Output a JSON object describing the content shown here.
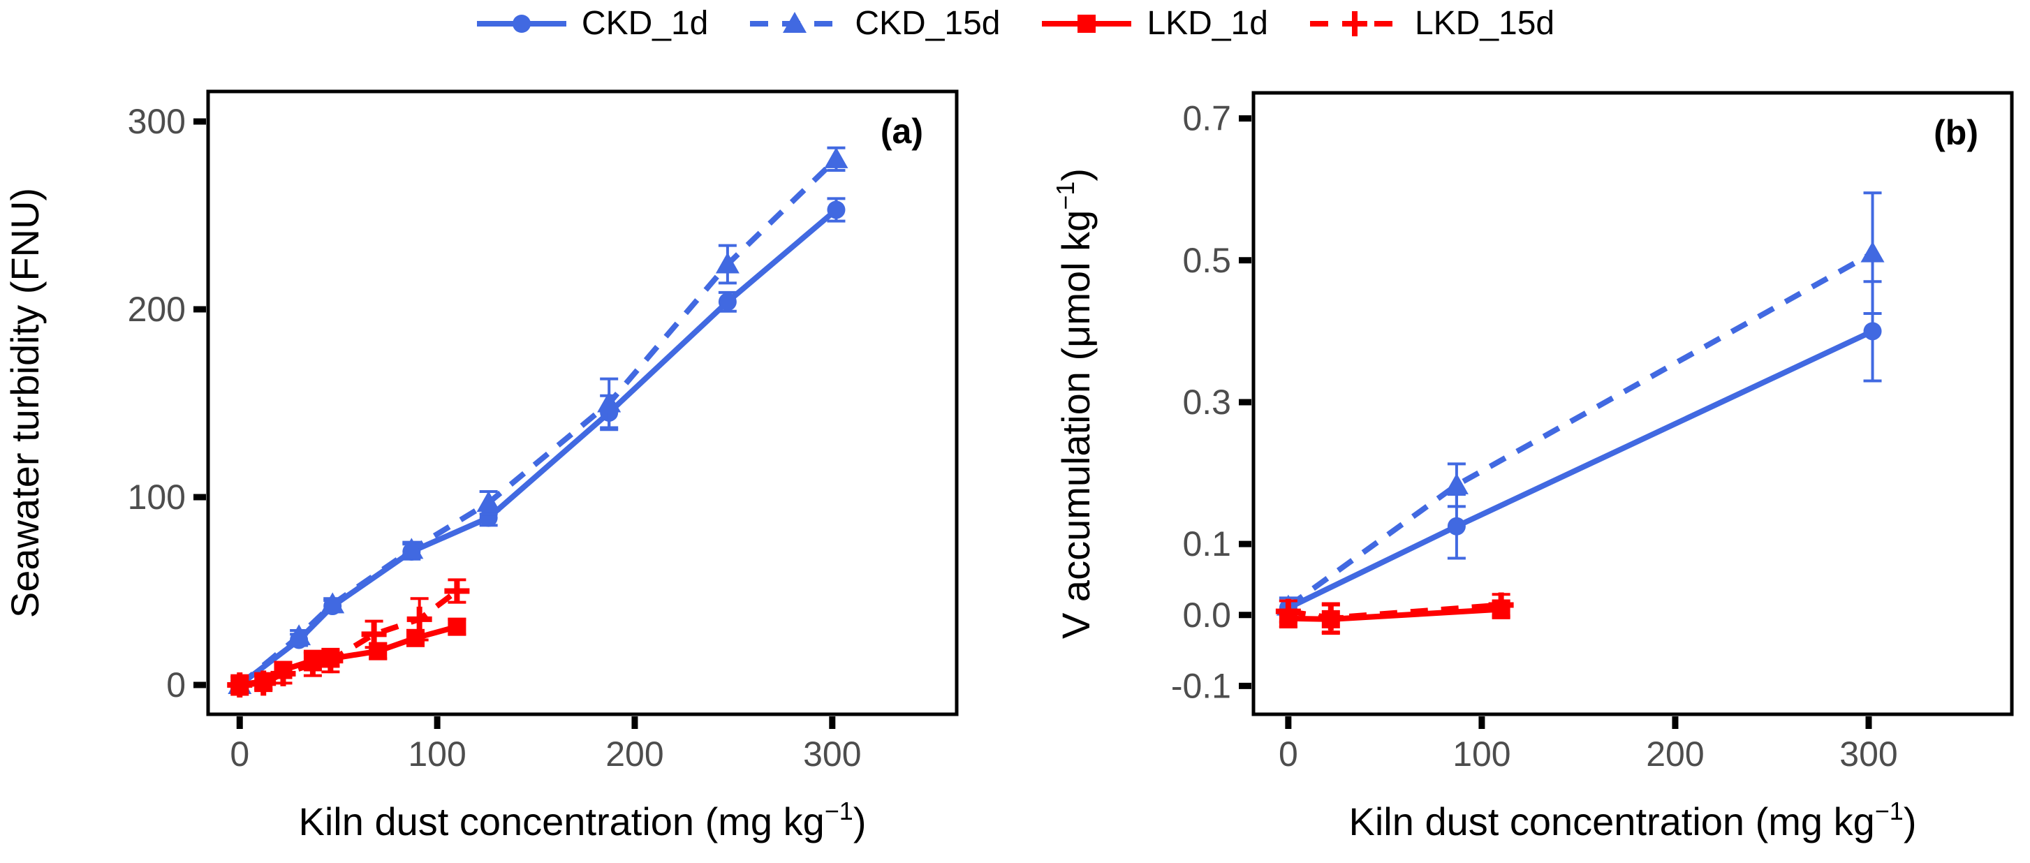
{
  "figure": {
    "background": "#ffffff"
  },
  "style": {
    "axis_color": "#000000",
    "tick_label_color": "#4d4d4d",
    "blue": "#4169E1",
    "red": "#ff0000"
  },
  "legend": {
    "position": "top-center",
    "items": [
      {
        "label": "CKD_1d",
        "color": "#4169E1",
        "dash": false,
        "marker": "circle"
      },
      {
        "label": "CKD_15d",
        "color": "#4169E1",
        "dash": true,
        "marker": "triangle"
      },
      {
        "label": "LKD_1d",
        "color": "#ff0000",
        "dash": false,
        "marker": "square"
      },
      {
        "label": "LKD_15d",
        "color": "#ff0000",
        "dash": true,
        "marker": "plus"
      }
    ]
  },
  "chart_data": [
    {
      "id": "a",
      "type": "line",
      "panel_label": "(a)",
      "xlabel": {
        "base": "Kiln dust concentration (mg kg",
        "sup": "−1",
        "end": ")"
      },
      "ylabel": {
        "base": "Seawater turbidity (FNU)",
        "sup": "",
        "end": ""
      },
      "xlim": [
        -16,
        363
      ],
      "ylim": [
        -15.6,
        316
      ],
      "grid": false,
      "xticks": [
        {
          "v": 0,
          "label": "0"
        },
        {
          "v": 100,
          "label": "100"
        },
        {
          "v": 200,
          "label": "200"
        },
        {
          "v": 300,
          "label": "300"
        }
      ],
      "yticks": [
        {
          "v": 0,
          "label": "0"
        },
        {
          "v": 100,
          "label": "100"
        },
        {
          "v": 200,
          "label": "200"
        },
        {
          "v": 300,
          "label": "300"
        }
      ],
      "series": [
        {
          "name": "CKD_1d",
          "color": "#4169E1",
          "dash": false,
          "marker": "circle",
          "x": [
            0,
            30,
            47,
            87,
            126,
            187,
            247,
            302
          ],
          "y": [
            0,
            24,
            42,
            71,
            89,
            145,
            204,
            253
          ],
          "err": [
            2,
            3,
            3,
            4,
            4,
            9,
            5,
            6
          ]
        },
        {
          "name": "CKD_15d",
          "color": "#4169E1",
          "dash": true,
          "marker": "triangle",
          "x": [
            0,
            30,
            47,
            87,
            126,
            187,
            247,
            302
          ],
          "y": [
            0,
            26,
            43,
            72,
            97,
            150,
            224,
            280
          ],
          "err": [
            2,
            3,
            3,
            4,
            6,
            13,
            10,
            6
          ]
        },
        {
          "name": "LKD_1d",
          "color": "#ff0000",
          "dash": false,
          "marker": "square",
          "x": [
            0,
            12,
            22,
            37,
            46,
            70,
            89,
            110
          ],
          "y": [
            0,
            2,
            8,
            13,
            14,
            18,
            25,
            31
          ],
          "err": [
            4,
            4,
            4,
            5,
            4,
            4,
            4,
            4
          ]
        },
        {
          "name": "LKD_15d",
          "color": "#ff0000",
          "dash": true,
          "marker": "plus",
          "x": [
            0,
            12,
            22,
            37,
            46,
            68,
            91,
            110
          ],
          "y": [
            0,
            1,
            6,
            11,
            13,
            27,
            35,
            50
          ],
          "err": [
            5,
            4,
            5,
            6,
            6,
            7,
            11,
            6
          ]
        }
      ]
    },
    {
      "id": "b",
      "type": "line",
      "panel_label": "(b)",
      "xlabel": {
        "base": "Kiln dust concentration (mg kg",
        "sup": "−1",
        "end": ")"
      },
      "ylabel": {
        "base": "V accumulation (μmol kg",
        "sup": "−1",
        "end": ")"
      },
      "xlim": [
        -18,
        374
      ],
      "ylim": [
        -0.14,
        0.736
      ],
      "grid": false,
      "xticks": [
        {
          "v": 0,
          "label": "0"
        },
        {
          "v": 100,
          "label": "100"
        },
        {
          "v": 200,
          "label": "200"
        },
        {
          "v": 300,
          "label": "300"
        }
      ],
      "yticks": [
        {
          "v": 0.7,
          "label": "0.7"
        },
        {
          "v": 0.5,
          "label": "0.5"
        },
        {
          "v": 0.3,
          "label": "0.3"
        },
        {
          "v": 0.1,
          "label": "0.1"
        },
        {
          "v": 0.0,
          "label": "0.0"
        },
        {
          "v": -0.1,
          "label": "-0.1"
        }
      ],
      "series": [
        {
          "name": "CKD_1d",
          "color": "#4169E1",
          "dash": false,
          "marker": "circle",
          "x": [
            0,
            87,
            302
          ],
          "y": [
            0.01,
            0.125,
            0.4
          ],
          "err": [
            0.01,
            0.045,
            0.07
          ]
        },
        {
          "name": "CKD_15d",
          "color": "#4169E1",
          "dash": true,
          "marker": "triangle",
          "x": [
            0,
            87,
            302
          ],
          "y": [
            0.012,
            0.183,
            0.51
          ],
          "err": [
            0.012,
            0.03,
            0.085
          ]
        },
        {
          "name": "LKD_1d",
          "color": "#ff0000",
          "dash": false,
          "marker": "square",
          "x": [
            0,
            22,
            110
          ],
          "y": [
            -0.005,
            -0.006,
            0.008
          ],
          "err": [
            0.012,
            0.02,
            0.012
          ]
        },
        {
          "name": "LKD_15d",
          "color": "#ff0000",
          "dash": true,
          "marker": "plus",
          "x": [
            0,
            22,
            110
          ],
          "y": [
            0.005,
            -0.004,
            0.014
          ],
          "err": [
            0.015,
            0.02,
            0.015
          ]
        }
      ]
    }
  ]
}
